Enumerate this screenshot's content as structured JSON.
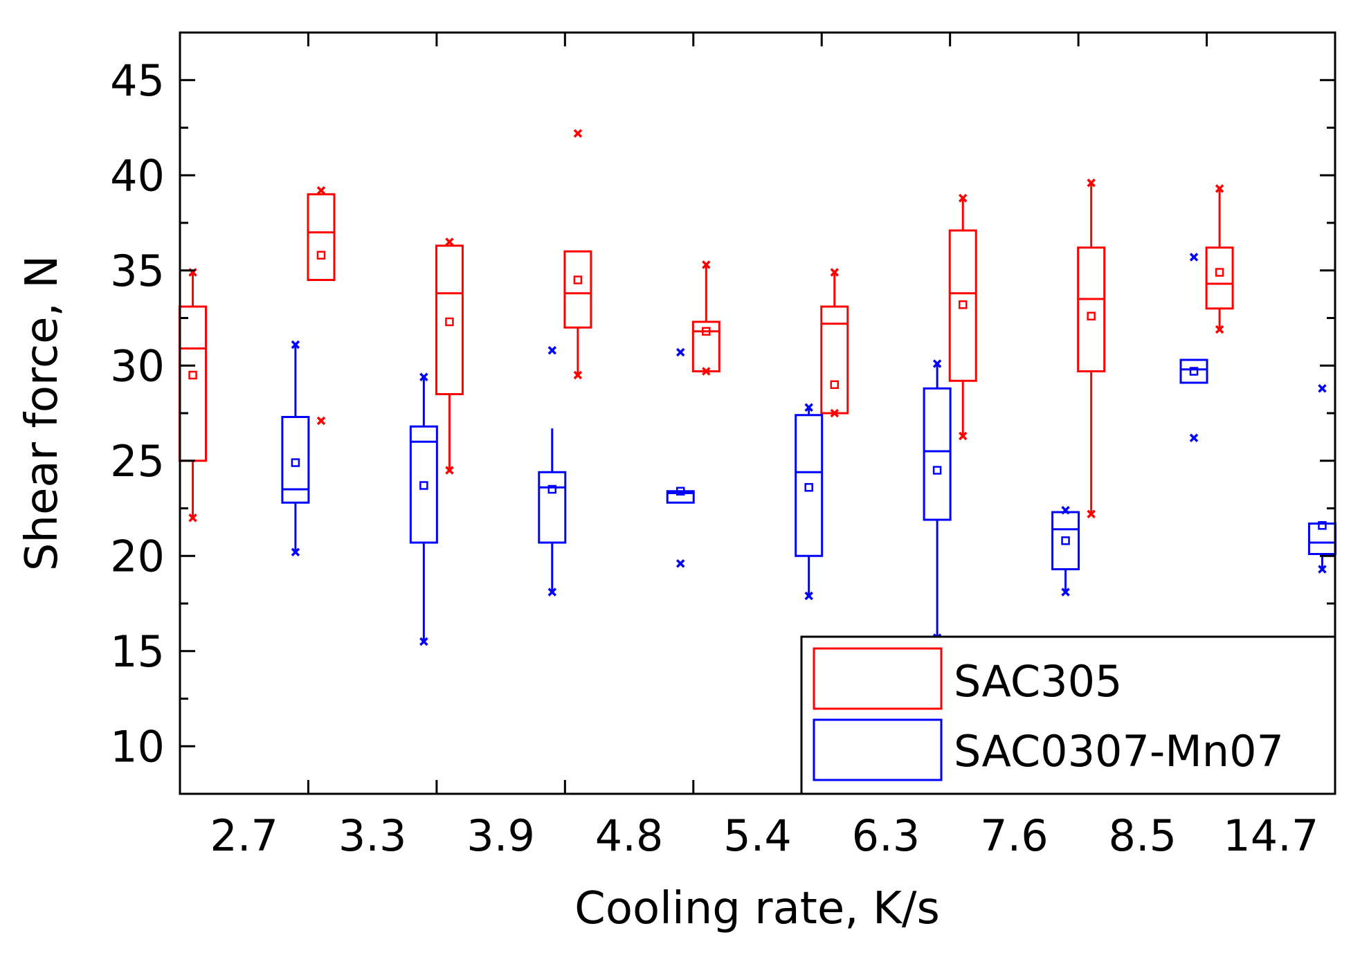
{
  "chart_data": {
    "type": "box",
    "xlabel": "Cooling rate, K/s",
    "ylabel": "Shear force, N",
    "ylim": [
      7.5,
      47.5
    ],
    "yticks": [
      10,
      15,
      20,
      25,
      30,
      35,
      40,
      45
    ],
    "categories": [
      "2.7",
      "3.3",
      "3.9",
      "4.8",
      "5.4",
      "6.3",
      "7.6",
      "8.5",
      "14.7"
    ],
    "legend_position": "bottom-right",
    "series": [
      {
        "name": "SAC305",
        "color": "#ff0000",
        "boxes": [
          {
            "min": 22.0,
            "q1": 25.0,
            "median": 30.9,
            "q3": 33.1,
            "max": 34.9,
            "mean": 29.5,
            "whisker_low": 22.0,
            "whisker_high": 34.9
          },
          {
            "min": 27.1,
            "q1": 34.5,
            "median": 37.0,
            "q3": 39.0,
            "max": 39.2,
            "mean": 35.8,
            "whisker_low": 34.5,
            "whisker_high": 39.0
          },
          {
            "min": 24.5,
            "q1": 28.5,
            "median": 33.8,
            "q3": 36.3,
            "max": 36.5,
            "mean": 32.3,
            "whisker_low": 24.5,
            "whisker_high": 36.3
          },
          {
            "min": 29.5,
            "q1": 32.0,
            "median": 33.8,
            "q3": 36.0,
            "max": 42.2,
            "mean": 34.5,
            "whisker_low": 29.5,
            "whisker_high": 36.0
          },
          {
            "min": 29.7,
            "q1": 29.7,
            "median": 31.8,
            "q3": 32.3,
            "max": 35.3,
            "mean": 31.8,
            "whisker_low": 29.7,
            "whisker_high": 35.3
          },
          {
            "min": 27.5,
            "q1": 27.5,
            "median": 32.2,
            "q3": 33.1,
            "max": 34.9,
            "mean": 29.0,
            "whisker_low": 27.5,
            "whisker_high": 34.9
          },
          {
            "min": 26.3,
            "q1": 29.2,
            "median": 33.8,
            "q3": 37.1,
            "max": 38.8,
            "mean": 33.2,
            "whisker_low": 26.3,
            "whisker_high": 38.8
          },
          {
            "min": 22.2,
            "q1": 29.7,
            "median": 33.5,
            "q3": 36.2,
            "max": 39.6,
            "mean": 32.6,
            "whisker_low": 22.2,
            "whisker_high": 39.6
          },
          {
            "min": 31.9,
            "q1": 33.0,
            "median": 34.3,
            "q3": 36.2,
            "max": 39.3,
            "mean": 34.9,
            "whisker_low": 31.9,
            "whisker_high": 39.3
          }
        ]
      },
      {
        "name": "SAC0307-Mn07",
        "color": "#0000ff",
        "boxes": [
          {
            "min": 20.2,
            "q1": 22.8,
            "median": 23.5,
            "q3": 27.3,
            "max": 31.1,
            "mean": 24.9,
            "whisker_low": 20.2,
            "whisker_high": 31.1
          },
          {
            "min": 15.5,
            "q1": 20.7,
            "median": 26.0,
            "q3": 26.8,
            "max": 29.4,
            "mean": 23.7,
            "whisker_low": 15.5,
            "whisker_high": 29.4
          },
          {
            "min": 18.1,
            "q1": 20.7,
            "median": 23.6,
            "q3": 24.4,
            "max": 30.8,
            "mean": 23.5,
            "whisker_low": 18.1,
            "whisker_high": 26.7
          },
          {
            "min": 19.6,
            "q1": 22.8,
            "median": 23.3,
            "q3": 23.4,
            "max": 30.7,
            "mean": 23.4,
            "whisker_low": 22.8,
            "whisker_high": 23.4
          },
          {
            "min": 17.9,
            "q1": 20.0,
            "median": 24.4,
            "q3": 27.4,
            "max": 27.8,
            "mean": 23.6,
            "whisker_low": 17.9,
            "whisker_high": 27.8
          },
          {
            "min": 15.7,
            "q1": 21.9,
            "median": 25.5,
            "q3": 28.8,
            "max": 30.1,
            "mean": 24.5,
            "whisker_low": 15.7,
            "whisker_high": 30.1
          },
          {
            "min": 18.1,
            "q1": 19.3,
            "median": 21.4,
            "q3": 22.3,
            "max": 22.4,
            "mean": 20.8,
            "whisker_low": 18.1,
            "whisker_high": 22.3
          },
          {
            "min": 26.2,
            "q1": 29.1,
            "median": 29.8,
            "q3": 30.3,
            "max": 35.7,
            "mean": 29.7,
            "whisker_low": 29.1,
            "whisker_high": 30.3
          },
          {
            "min": 19.3,
            "q1": 20.1,
            "median": 20.7,
            "q3": 21.7,
            "max": 28.8,
            "mean": 21.6,
            "whisker_low": 19.3,
            "whisker_high": 21.7
          }
        ]
      }
    ]
  }
}
